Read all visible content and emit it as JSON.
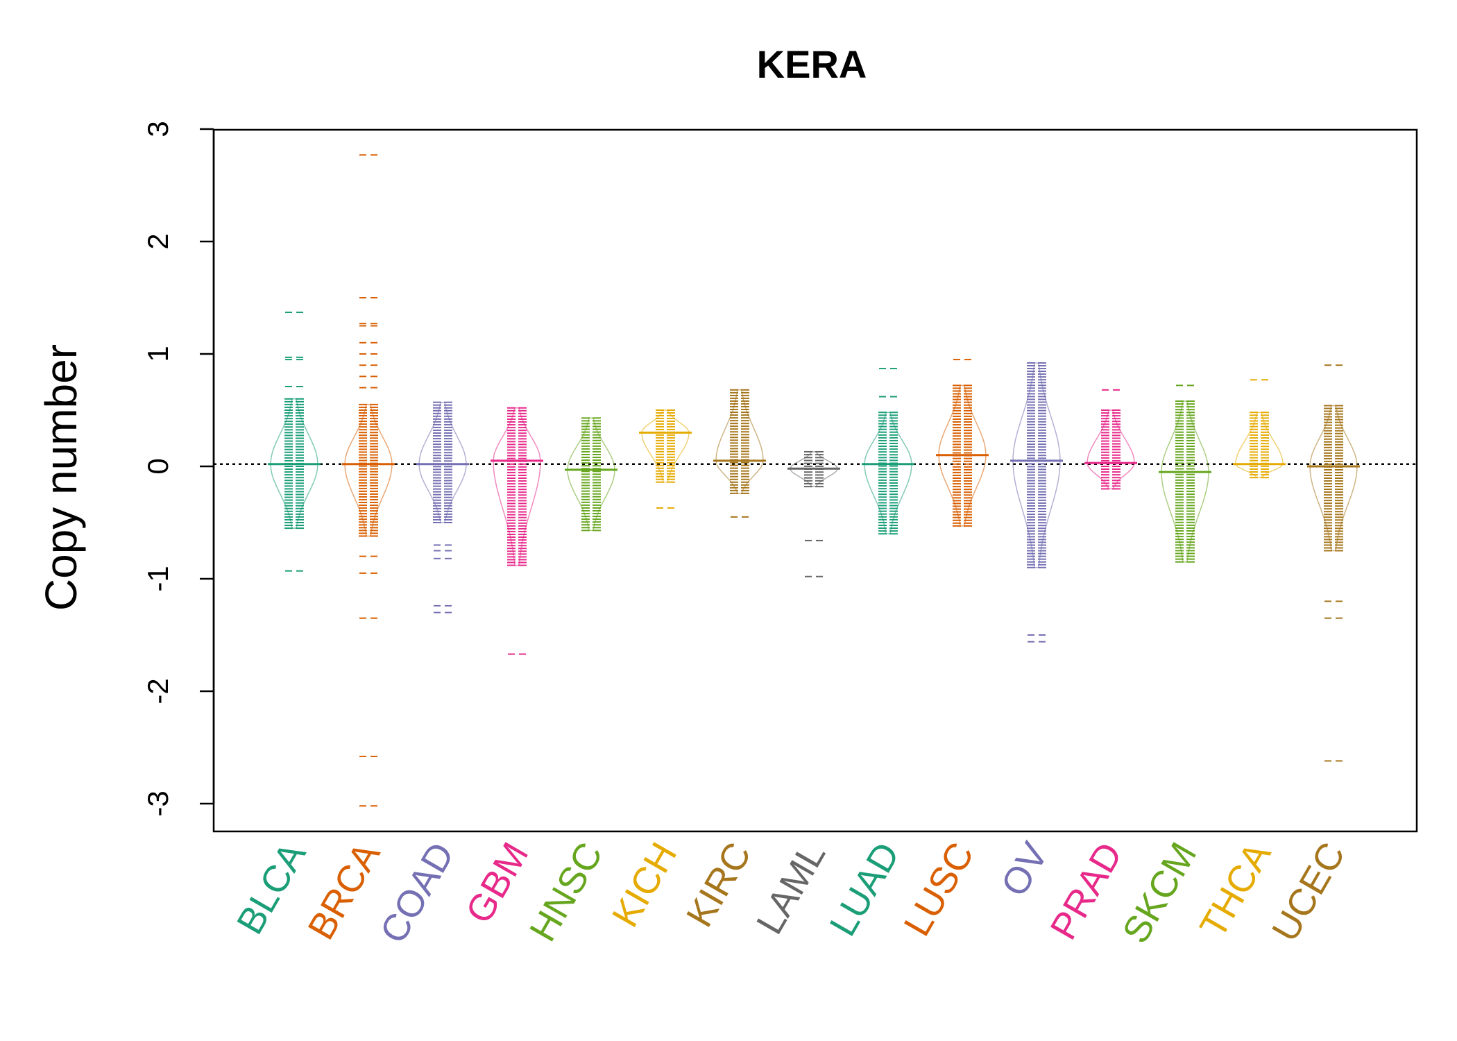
{
  "chart_data": {
    "type": "beanplot",
    "title": "KERA",
    "xlabel": "",
    "ylabel": "Copy number",
    "ylim": [
      -3.25,
      3
    ],
    "yticks": [
      -3,
      -2,
      -1,
      0,
      1,
      2,
      3
    ],
    "reference_line": 0.02,
    "grid": false,
    "legend": "none",
    "categories": [
      "BLCA",
      "BRCA",
      "COAD",
      "GBM",
      "HNSC",
      "KICH",
      "KIRC",
      "LAML",
      "LUAD",
      "LUSC",
      "OV",
      "PRAD",
      "SKCM",
      "THCA",
      "UCEC"
    ],
    "colors": [
      "#1B9E77",
      "#D95F02",
      "#7570B3",
      "#E7298A",
      "#66A61E",
      "#E6AB02",
      "#A6761D",
      "#666666",
      "#1B9E77",
      "#D95F02",
      "#7570B3",
      "#E7298A",
      "#66A61E",
      "#E6AB02",
      "#A6761D"
    ],
    "series": [
      {
        "category": "BLCA",
        "min": -0.55,
        "max": 0.6,
        "median": 0.02,
        "outliers": [
          1.37,
          0.97,
          0.95,
          0.71,
          -0.93
        ]
      },
      {
        "category": "BRCA",
        "min": -0.62,
        "max": 0.55,
        "median": 0.02,
        "outliers": [
          2.77,
          1.5,
          1.27,
          1.25,
          1.1,
          1.0,
          0.9,
          0.8,
          0.7,
          -0.8,
          -0.95,
          -1.35,
          -2.58,
          -3.02
        ]
      },
      {
        "category": "COAD",
        "min": -0.5,
        "max": 0.57,
        "median": 0.02,
        "outliers": [
          -0.7,
          -0.75,
          -0.82,
          -1.24,
          -1.3
        ]
      },
      {
        "category": "GBM",
        "min": -0.88,
        "max": 0.52,
        "median": 0.05,
        "outliers": [
          -1.67
        ]
      },
      {
        "category": "HNSC",
        "min": -0.57,
        "max": 0.43,
        "median": -0.03,
        "outliers": []
      },
      {
        "category": "KICH",
        "min": -0.14,
        "max": 0.5,
        "median": 0.3,
        "outliers": [
          -0.37
        ]
      },
      {
        "category": "KIRC",
        "min": -0.24,
        "max": 0.68,
        "median": 0.05,
        "outliers": [
          -0.45
        ]
      },
      {
        "category": "LAML",
        "min": -0.18,
        "max": 0.13,
        "median": -0.02,
        "outliers": [
          -0.66,
          -0.98
        ]
      },
      {
        "category": "LUAD",
        "min": -0.6,
        "max": 0.48,
        "median": 0.02,
        "outliers": [
          0.87,
          0.62
        ]
      },
      {
        "category": "LUSC",
        "min": -0.53,
        "max": 0.72,
        "median": 0.1,
        "outliers": [
          0.95
        ]
      },
      {
        "category": "OV",
        "min": -0.9,
        "max": 0.92,
        "median": 0.05,
        "outliers": [
          -1.5,
          -1.56
        ]
      },
      {
        "category": "PRAD",
        "min": -0.2,
        "max": 0.5,
        "median": 0.03,
        "outliers": [
          0.68
        ]
      },
      {
        "category": "SKCM",
        "min": -0.85,
        "max": 0.58,
        "median": -0.05,
        "outliers": [
          0.72
        ]
      },
      {
        "category": "THCA",
        "min": -0.1,
        "max": 0.48,
        "median": 0.02,
        "outliers": [
          0.77
        ]
      },
      {
        "category": "UCEC",
        "min": -0.75,
        "max": 0.54,
        "median": 0.0,
        "outliers": [
          0.9,
          -1.2,
          -1.35,
          -2.62
        ]
      }
    ]
  }
}
